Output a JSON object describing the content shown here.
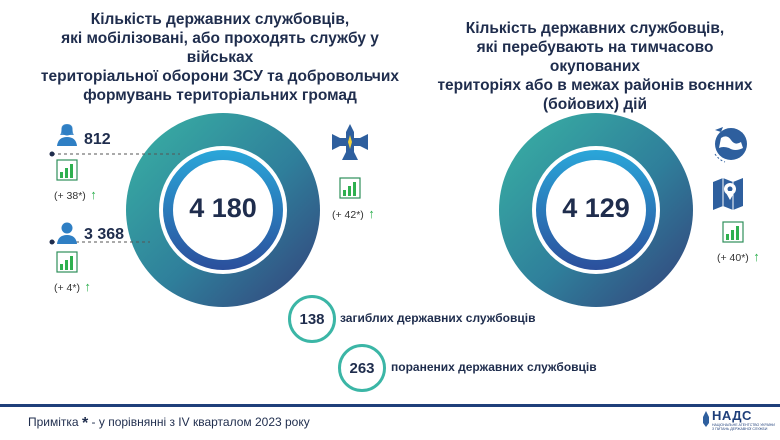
{
  "left_panel": {
    "title": "Кількість державних службовців,\nякі мобілізовані, або проходять службу у військах\nтериторіальної оборони ЗСУ та добровольчих\nформувань територіальних громад",
    "total": "4 180",
    "female_count": "812",
    "female_delta": "(+ 38*)",
    "male_count": "3 368",
    "male_delta": "(+ 4*)",
    "cross_delta": "(+ 42*)"
  },
  "right_panel": {
    "title": "Кількість державних службовців,\nякі перебувають на тимчасово окупованих\nтериторіях або в межах районів воєнних\n(бойових) дій",
    "total": "4 129",
    "delta": "(+ 40*)"
  },
  "stats": {
    "killed_count": "138",
    "killed_label": "загиблих державних службовців",
    "wounded_count": "263",
    "wounded_label": "поранених державних службовців"
  },
  "footer": {
    "note_prefix": "Примітка",
    "note_star": "*",
    "note_text": "- у порівнянні з IV кварталом 2023 року",
    "logo_text": "НАДС",
    "logo_sub1": "НАЦІОНАЛЬНЕ АГЕНТСТВО УКРАЇНИ",
    "logo_sub2": "З ПИТАНЬ ДЕРЖАВНОЇ СЛУЖБИ"
  },
  "icons": {
    "arrow_up": "↑",
    "colors": {
      "navy": "#1f2d4d",
      "teal": "#3bb6a6",
      "blue": "#2e5f9e",
      "green": "#2eb04f"
    }
  }
}
